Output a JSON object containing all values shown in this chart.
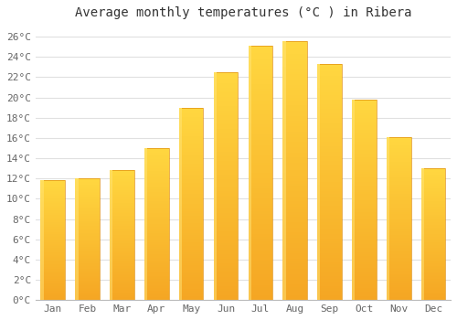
{
  "title": "Average monthly temperatures (°C ) in Ribera",
  "months": [
    "Jan",
    "Feb",
    "Mar",
    "Apr",
    "May",
    "Jun",
    "Jul",
    "Aug",
    "Sep",
    "Oct",
    "Nov",
    "Dec"
  ],
  "values": [
    11.8,
    12.0,
    12.8,
    15.0,
    19.0,
    22.5,
    25.1,
    25.6,
    23.3,
    19.8,
    16.1,
    13.0
  ],
  "bar_color_bottom": "#F5A623",
  "bar_color_top": "#FFD740",
  "bar_edge_color": "#E09010",
  "plot_bg_color": "#FFFFFF",
  "fig_bg_color": "#FFFFFF",
  "grid_color": "#E0E0E0",
  "ylim": [
    0,
    27
  ],
  "yticks": [
    0,
    2,
    4,
    6,
    8,
    10,
    12,
    14,
    16,
    18,
    20,
    22,
    24,
    26
  ],
  "ytick_labels": [
    "0°C",
    "2°C",
    "4°C",
    "6°C",
    "8°C",
    "10°C",
    "12°C",
    "14°C",
    "16°C",
    "18°C",
    "20°C",
    "22°C",
    "24°C",
    "26°C"
  ],
  "title_fontsize": 10,
  "tick_fontsize": 8,
  "tick_color": "#666666",
  "title_color": "#333333"
}
